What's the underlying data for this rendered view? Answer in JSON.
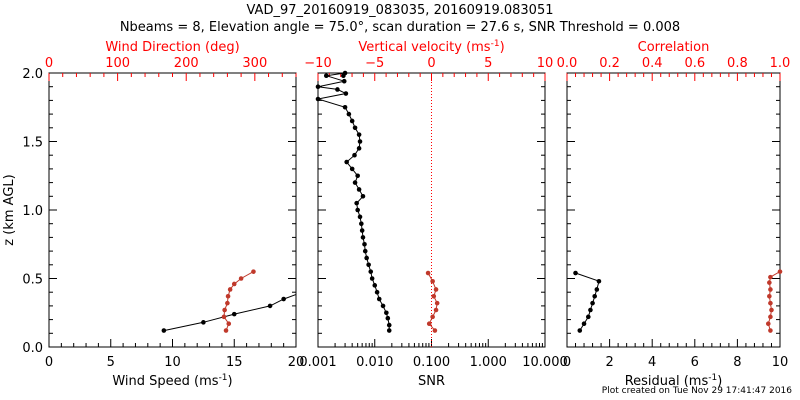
{
  "header": {
    "title_line1": "VAD_97_20160919_083035, 20160919.083051",
    "title_line2": "Nbeams = 8, Elevation angle = 75.0°, scan duration = 27.6 s, SNR Threshold = 0.008"
  },
  "footer": {
    "created": "Plot created on Tue Nov 29 17:41:47 2016"
  },
  "colors": {
    "primary": "#000000",
    "secondary": "#c0392b",
    "axis_red": "#ff0000"
  },
  "chart_data": [
    {
      "type": "line",
      "ylabel": "z (km AGL)",
      "ylim": [
        0,
        2
      ],
      "yticks": [
        "0.0",
        "0.5",
        "1.0",
        "1.5",
        "2.0"
      ],
      "bottom_axis": {
        "label_prefix": "Wind Speed (ms",
        "label_exp": "-1",
        "label_suffix": ")",
        "xlim": [
          0,
          20
        ],
        "ticks": [
          "0",
          "5",
          "10",
          "15",
          "20"
        ]
      },
      "top_axis": {
        "label": "Wind Direction (deg)",
        "xlim": [
          0,
          360
        ],
        "ticks": [
          "0",
          "100",
          "200",
          "300"
        ]
      },
      "series": [
        {
          "axis": "bottom",
          "color": "black",
          "x": [
            9.3,
            12.5,
            15.0,
            17.9,
            19.0,
            20.5
          ],
          "y": [
            0.12,
            0.18,
            0.24,
            0.3,
            0.35,
            0.4
          ]
        },
        {
          "axis": "top",
          "color": "red",
          "x": [
            258,
            262,
            255,
            256,
            260,
            261,
            264,
            270,
            280,
            298
          ],
          "y": [
            0.12,
            0.17,
            0.22,
            0.27,
            0.32,
            0.37,
            0.42,
            0.46,
            0.5,
            0.55
          ]
        }
      ]
    },
    {
      "type": "line",
      "ylim": [
        0,
        2
      ],
      "bottom_axis": {
        "label": "SNR",
        "scale": "log",
        "xlim": [
          0.001,
          10
        ],
        "ticks": [
          "0.001",
          "0.010",
          "0.100",
          "1.000",
          "10.000"
        ]
      },
      "top_axis": {
        "label_prefix": "Vertical velocity (ms",
        "label_exp": "-1",
        "label_suffix": ")",
        "xlim": [
          -10,
          10
        ],
        "ticks": [
          "−10",
          "−5",
          "0",
          "5",
          "10"
        ],
        "zero_reference": 0
      },
      "series": [
        {
          "axis": "bottom",
          "color": "black",
          "x": [
            0.018,
            0.018,
            0.017,
            0.016,
            0.014,
            0.012,
            0.011,
            0.01,
            0.009,
            0.0085,
            0.0078,
            0.0072,
            0.0068,
            0.0066,
            0.0062,
            0.006,
            0.0058,
            0.0055,
            0.005,
            0.0048,
            0.0062,
            0.0053,
            0.0045,
            0.005,
            0.004,
            0.0032,
            0.0044,
            0.0053,
            0.0055,
            0.0053,
            0.0045,
            0.004,
            0.0035,
            0.003,
            0.001,
            0.0031,
            0.0022,
            0.001,
            0.0029,
            0.0014,
            0.003,
            0.0028
          ],
          "y": [
            0.12,
            0.16,
            0.21,
            0.25,
            0.3,
            0.35,
            0.4,
            0.45,
            0.5,
            0.55,
            0.6,
            0.65,
            0.7,
            0.75,
            0.8,
            0.85,
            0.9,
            0.95,
            1.0,
            1.05,
            1.1,
            1.15,
            1.2,
            1.25,
            1.3,
            1.35,
            1.4,
            1.45,
            1.5,
            1.55,
            1.6,
            1.65,
            1.7,
            1.75,
            1.81,
            1.85,
            1.88,
            1.9,
            1.94,
            1.98,
            2.0,
            1.98
          ]
        },
        {
          "axis": "top",
          "color": "red",
          "x": [
            0.3,
            -0.2,
            0.1,
            0.4,
            0.5,
            0.2,
            0.4,
            0.1,
            -0.3
          ],
          "y": [
            0.12,
            0.17,
            0.22,
            0.27,
            0.32,
            0.37,
            0.42,
            0.48,
            0.54
          ]
        }
      ]
    },
    {
      "type": "line",
      "ylim": [
        0,
        2
      ],
      "bottom_axis": {
        "label_prefix": "Residual (ms",
        "label_exp": "-1",
        "label_suffix": ")",
        "xlim": [
          0,
          10
        ],
        "ticks": [
          "0",
          "2",
          "4",
          "6",
          "8",
          "10"
        ]
      },
      "top_axis": {
        "label": "Correlation",
        "xlim": [
          0.0,
          1.0
        ],
        "ticks": [
          "0.0",
          "0.2",
          "0.4",
          "0.6",
          "0.8",
          "1.0"
        ]
      },
      "series": [
        {
          "axis": "bottom",
          "color": "black",
          "x": [
            0.6,
            0.8,
            1.0,
            1.1,
            1.2,
            1.3,
            1.4,
            1.5,
            0.4
          ],
          "y": [
            0.12,
            0.17,
            0.22,
            0.27,
            0.32,
            0.37,
            0.42,
            0.48,
            0.54
          ]
        },
        {
          "axis": "top",
          "color": "red",
          "x": [
            0.955,
            0.945,
            0.955,
            0.96,
            0.955,
            0.95,
            0.955,
            0.95,
            0.955,
            1.0
          ],
          "y": [
            0.12,
            0.17,
            0.22,
            0.27,
            0.32,
            0.37,
            0.42,
            0.47,
            0.51,
            0.55
          ]
        }
      ]
    }
  ]
}
